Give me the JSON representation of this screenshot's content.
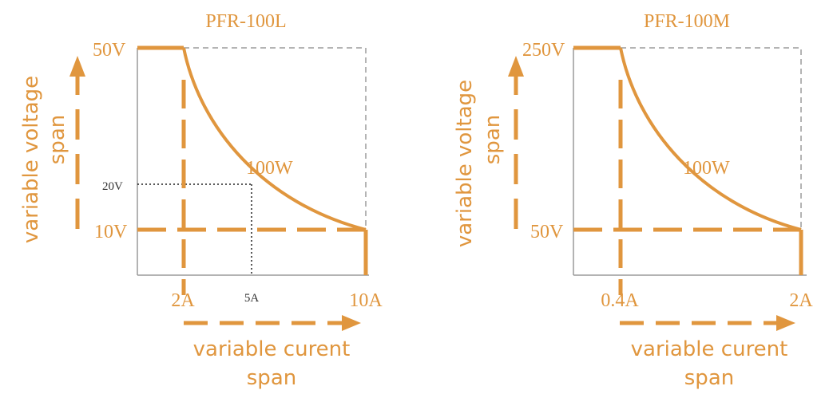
{
  "colors": {
    "accent": "#e0963e",
    "axis": "#9a9a9a",
    "guide_dashed": "#9c9c9c",
    "guide_dotted": "#222222"
  },
  "chart_data": [
    {
      "type": "line",
      "title": "PFR-100L",
      "curve_label": "100W",
      "power_w": 100,
      "voltage_ticks": [
        "50V",
        "20V",
        "10V"
      ],
      "current_ticks": [
        "2A",
        "5A",
        "10A"
      ],
      "xlabel": [
        "variable curent",
        "span"
      ],
      "ylabel": [
        "variable voltage",
        "span"
      ],
      "envelope_points": [
        {
          "x": 0,
          "y": 50
        },
        {
          "x": 2,
          "y": 50
        },
        {
          "x": 5,
          "y": 20
        },
        {
          "x": 10,
          "y": 10
        },
        {
          "x": 10,
          "y": 0
        }
      ],
      "example_point": {
        "x": 5,
        "y": 20
      }
    },
    {
      "type": "line",
      "title": "PFR-100M",
      "curve_label": "100W",
      "power_w": 100,
      "voltage_ticks": [
        "250V",
        "50V"
      ],
      "current_ticks": [
        "0.4A",
        "2A"
      ],
      "xlabel": [
        "variable curent",
        "span"
      ],
      "ylabel": [
        "variable voltage",
        "span"
      ],
      "envelope_points": [
        {
          "x": 0,
          "y": 250
        },
        {
          "x": 0.4,
          "y": 250
        },
        {
          "x": 2,
          "y": 50
        },
        {
          "x": 2,
          "y": 0
        }
      ]
    }
  ]
}
